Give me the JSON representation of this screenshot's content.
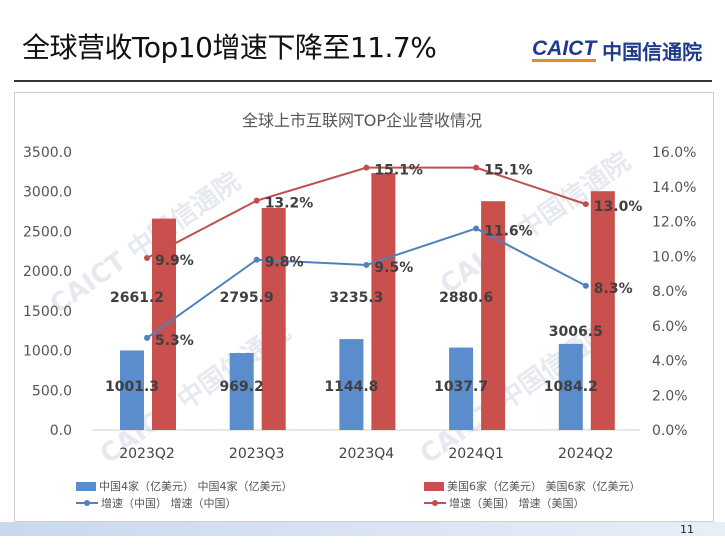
{
  "page": {
    "title": "全球营收Top10增速下降至11.7%",
    "logo_en": "CAICT",
    "logo_cn": "中国信通院",
    "page_number": "11",
    "watermark": "CAICT 中国信通院"
  },
  "colors": {
    "china": "#5b8ccc",
    "us": "#c9504c",
    "china_line": "#4f81bd",
    "us_line": "#c0504d"
  },
  "chart_data": {
    "type": "bar+line",
    "title": "全球上市互联网TOP企业营收情况",
    "categories": [
      "2023Q2",
      "2023Q3",
      "2023Q4",
      "2024Q1",
      "2024Q2"
    ],
    "series": [
      {
        "name": "中国4家（亿美元）",
        "type": "bar",
        "axis": "left",
        "values": [
          1001.3,
          969.2,
          1144.8,
          1037.7,
          1084.2
        ],
        "labels": [
          "1001.3",
          "969.2",
          "1144.8",
          "1037.7",
          "1084.2"
        ]
      },
      {
        "name": "美国6家（亿美元）",
        "type": "bar",
        "axis": "left",
        "values": [
          2661.2,
          2795.9,
          3235.3,
          2880.6,
          3006.5
        ],
        "labels": [
          "2661.2",
          "2795.9",
          "3235.3",
          "2880.6",
          "3006.5"
        ]
      },
      {
        "name": "增速（中国）",
        "type": "line",
        "axis": "right",
        "values": [
          5.3,
          9.8,
          9.5,
          11.6,
          8.3
        ],
        "labels": [
          "5.3%",
          "9.8%",
          "9.5%",
          "11.6%",
          "8.3%"
        ]
      },
      {
        "name": "增速（美国）",
        "type": "line",
        "axis": "right",
        "values": [
          9.9,
          13.2,
          15.1,
          15.1,
          13.0
        ],
        "labels": [
          "9.9%",
          "13.2%",
          "15.1%",
          "15.1%",
          "13.0%"
        ]
      }
    ],
    "ylim": [
      0,
      3500
    ],
    "y2lim": [
      0,
      16
    ],
    "yticks": [
      "0.0",
      "500.0",
      "1000.0",
      "1500.0",
      "2000.0",
      "2500.0",
      "3000.0",
      "3500.0"
    ],
    "y2ticks": [
      "0.0%",
      "2.0%",
      "4.0%",
      "6.0%",
      "8.0%",
      "10.0%",
      "12.0%",
      "14.0%",
      "16.0%"
    ],
    "legend": {
      "placement": "bottom",
      "items": [
        "中国4家（亿美元） 中国4家（亿美元）",
        "美国6家（亿美元） 美国6家（亿美元）",
        "增速（中国） 增速（中国）",
        "增速（美国） 增速（美国）"
      ]
    }
  }
}
